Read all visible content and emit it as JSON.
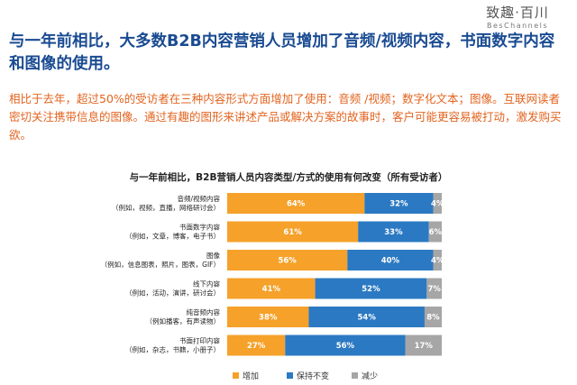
{
  "brand": {
    "name": "致趣·百川",
    "sub": "BesChannels"
  },
  "headline": "与一年前相比，大多数B2B内容营销人员增加了音频/视频内容，书面数字内容和图像的使用。",
  "subtext": "相比于去年，超过50%的受访者在三种内容形式方面增加了使用：音频 /视频；数字化文本；图像。互联网读者密切关注携带信息的图像。通过有趣的图形来讲述产品或解决方案的故事时，客户可能更容易被打动，激发购买欲。",
  "colors": {
    "increase": "#f5a12a",
    "same": "#2b79c2",
    "decrease": "#a6a6a6",
    "headline": "#1a4b92",
    "subtext": "#e2641f"
  },
  "chart_data": {
    "type": "bar",
    "orientation": "horizontal-stacked-100",
    "title": "与一年前相比，B2B营销人员内容类型/方式的使用有何改变（所有受访者）",
    "categories": [
      {
        "line1": "音频/视频内容",
        "line2": "（例如，视频，直播，网络研讨会）"
      },
      {
        "line1": "书面数字内容",
        "line2": "（例如，文章，博客，电子书）"
      },
      {
        "line1": "图像",
        "line2": "（例如，信息图表，照片，图表，GIF）"
      },
      {
        "line1": "线下内容",
        "line2": "（例如，活动，演讲，研讨会）"
      },
      {
        "line1": "纯音频内容",
        "line2": "（例如播客，有声读物）"
      },
      {
        "line1": "书面打印内容",
        "line2": "（例如，杂志，书籍，小册子）"
      }
    ],
    "series": [
      {
        "name": "增加",
        "color": "#f5a12a",
        "values": [
          64,
          61,
          56,
          41,
          38,
          27
        ]
      },
      {
        "name": "保持不变",
        "color": "#2b79c2",
        "values": [
          32,
          33,
          40,
          52,
          54,
          56
        ]
      },
      {
        "name": "减少",
        "color": "#a6a6a6",
        "values": [
          4,
          6,
          4,
          7,
          8,
          17
        ]
      }
    ],
    "unit": "%",
    "xlim": [
      0,
      100
    ],
    "legend_position": "bottom"
  }
}
